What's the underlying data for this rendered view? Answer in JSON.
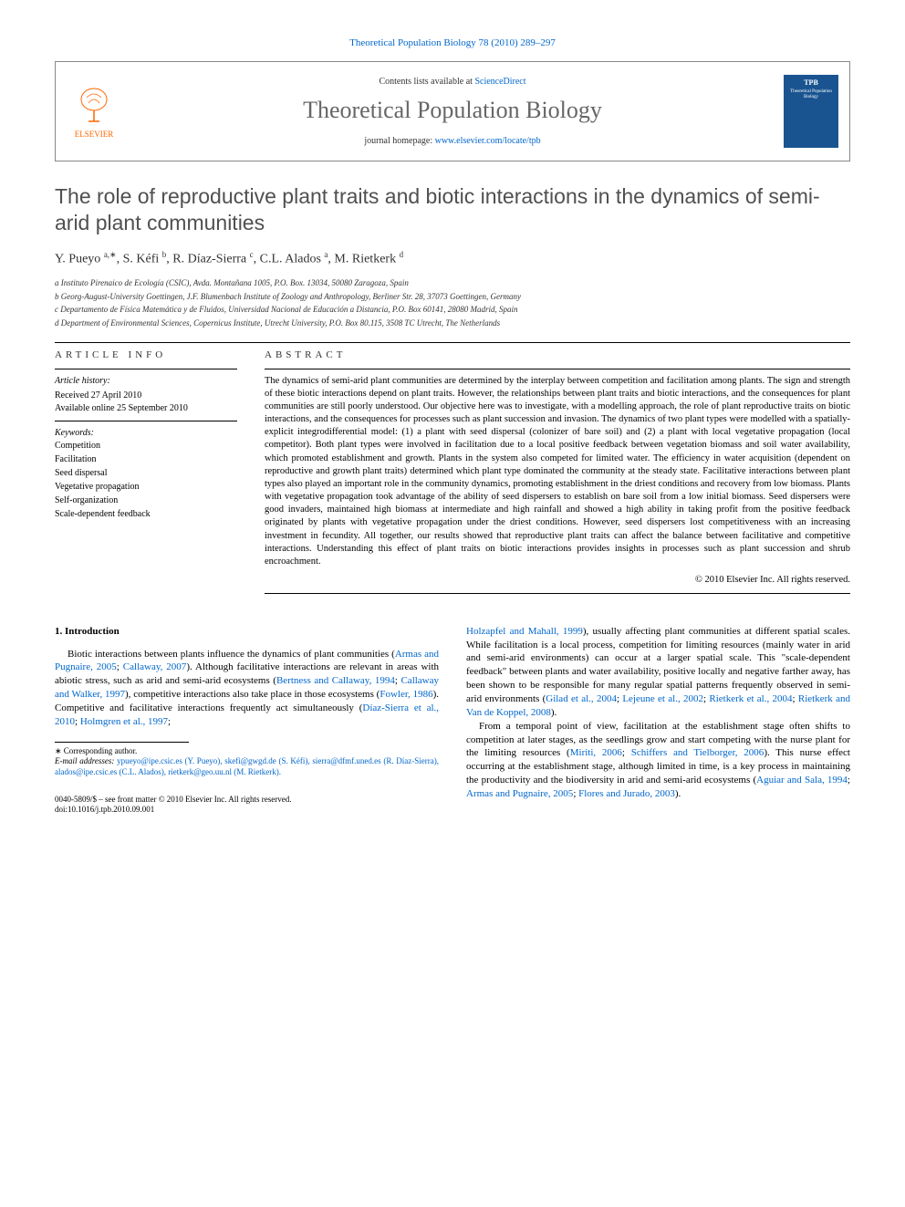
{
  "header": {
    "citation": "Theoretical Population Biology 78 (2010) 289–297",
    "contents_prefix": "Contents lists available at ",
    "contents_link": "ScienceDirect",
    "journal": "Theoretical Population Biology",
    "homepage_prefix": "journal homepage: ",
    "homepage_link": "www.elsevier.com/locate/tpb",
    "publisher": "ELSEVIER",
    "cover_abbrev": "TPB",
    "cover_title": "Theoretical Population Biology"
  },
  "article": {
    "title": "The role of reproductive plant traits and biotic interactions in the dynamics of semi-arid plant communities",
    "authors_html": "Y. Pueyo <sup>a,∗</sup>, S. Kéfi <sup>b</sup>, R. Díaz-Sierra <sup>c</sup>, C.L. Alados <sup>a</sup>, M. Rietkerk <sup>d</sup>",
    "affiliations": [
      "a Instituto Pirenaico de Ecología (CSIC), Avda. Montañana 1005, P.O. Box. 13034, 50080 Zaragoza, Spain",
      "b Georg-August-University Goettingen, J.F. Blumenbach Institute of Zoology and Anthropology, Berliner Str. 28, 37073 Goettingen, Germany",
      "c Departamento de Física Matemática y de Fluidos, Universidad Nacional de Educación a Distancia, P.O. Box 60141, 28080 Madrid, Spain",
      "d Department of Environmental Sciences, Copernicus Institute, Utrecht University, P.O. Box 80.115, 3508 TC Utrecht, The Netherlands"
    ]
  },
  "info": {
    "heading": "ARTICLE INFO",
    "history_heading": "Article history:",
    "received": "Received 27 April 2010",
    "online": "Available online 25 September 2010",
    "keywords_heading": "Keywords:",
    "keywords": [
      "Competition",
      "Facilitation",
      "Seed dispersal",
      "Vegetative propagation",
      "Self-organization",
      "Scale-dependent feedback"
    ]
  },
  "abstract": {
    "heading": "ABSTRACT",
    "text": "The dynamics of semi-arid plant communities are determined by the interplay between competition and facilitation among plants. The sign and strength of these biotic interactions depend on plant traits. However, the relationships between plant traits and biotic interactions, and the consequences for plant communities are still poorly understood. Our objective here was to investigate, with a modelling approach, the role of plant reproductive traits on biotic interactions, and the consequences for processes such as plant succession and invasion. The dynamics of two plant types were modelled with a spatially-explicit integrodifferential model: (1) a plant with seed dispersal (colonizer of bare soil) and (2) a plant with local vegetative propagation (local competitor). Both plant types were involved in facilitation due to a local positive feedback between vegetation biomass and soil water availability, which promoted establishment and growth. Plants in the system also competed for limited water. The efficiency in water acquisition (dependent on reproductive and growth plant traits) determined which plant type dominated the community at the steady state. Facilitative interactions between plant types also played an important role in the community dynamics, promoting establishment in the driest conditions and recovery from low biomass. Plants with vegetative propagation took advantage of the ability of seed dispersers to establish on bare soil from a low initial biomass. Seed dispersers were good invaders, maintained high biomass at intermediate and high rainfall and showed a high ability in taking profit from the positive feedback originated by plants with vegetative propagation under the driest conditions. However, seed dispersers lost competitiveness with an increasing investment in fecundity. All together, our results showed that reproductive plant traits can affect the balance between facilitative and competitive interactions. Understanding this effect of plant traits on biotic interactions provides insights in processes such as plant succession and shrub encroachment.",
    "copyright": "© 2010 Elsevier Inc. All rights reserved."
  },
  "body": {
    "section1_heading": "1. Introduction",
    "col1_p1_pre": "Biotic interactions between plants influence the dynamics of plant communities (",
    "col1_p1_c1": "Armas and Pugnaire, 2005",
    "col1_p1_m1": "; ",
    "col1_p1_c2": "Callaway, 2007",
    "col1_p1_m2": "). Although facilitative interactions are relevant in areas with abiotic stress, such as arid and semi-arid ecosystems (",
    "col1_p1_c3": "Bertness and Callaway, 1994",
    "col1_p1_m3": "; ",
    "col1_p1_c4": "Callaway and Walker, 1997",
    "col1_p1_m4": "), competitive interactions also take place in those ecosystems (",
    "col1_p1_c5": "Fowler, 1986",
    "col1_p1_m5": "). Competitive and facilitative interactions frequently act simultaneously (",
    "col1_p1_c6": "Díaz-Sierra et al., 2010",
    "col1_p1_m6": "; ",
    "col1_p1_c7": "Holmgren et al., 1997",
    "col1_p1_end": ";",
    "col2_p1_c1": "Holzapfel and Mahall, 1999",
    "col2_p1_m1": "), usually affecting plant communities at different spatial scales. While facilitation is a local process, competition for limiting resources (mainly water in arid and semi-arid environments) can occur at a larger spatial scale. This \"scale-dependent feedback\" between plants and water availability, positive locally and negative farther away, has been shown to be responsible for many regular spatial patterns frequently observed in semi-arid environments (",
    "col2_p1_c2": "Gilad et al., 2004",
    "col2_p1_m2": "; ",
    "col2_p1_c3": "Lejeune et al., 2002",
    "col2_p1_m3": "; ",
    "col2_p1_c4": "Rietkerk et al., 2004",
    "col2_p1_m4": "; ",
    "col2_p1_c5": "Rietkerk and Van de Koppel, 2008",
    "col2_p1_end": ").",
    "col2_p2_pre": "From a temporal point of view, facilitation at the establishment stage often shifts to competition at later stages, as the seedlings grow and start competing with the nurse plant for the limiting resources (",
    "col2_p2_c1": "Miriti, 2006",
    "col2_p2_m1": "; ",
    "col2_p2_c2": "Schiffers and Tielborger, 2006",
    "col2_p2_m2": "). This nurse effect occurring at the establishment stage, although limited in time, is a key process in maintaining the productivity and the biodiversity in arid and semi-arid ecosystems (",
    "col2_p2_c3": "Aguiar and Sala, 1994",
    "col2_p2_m3": "; ",
    "col2_p2_c4": "Armas and Pugnaire, 2005",
    "col2_p2_m4": "; ",
    "col2_p2_c5": "Flores and Jurado, 2003",
    "col2_p2_end": ")."
  },
  "footnotes": {
    "corresponding": "∗ Corresponding author.",
    "email_label": "E-mail addresses: ",
    "emails": "ypueyo@ipe.csic.es (Y. Pueyo), skefi@gwgd.de (S. Kéfi), sierra@dfmf.uned.es (R. Díaz-Sierra), alados@ipe.csic.es (C.L. Alados), rietkerk@geo.uu.nl (M. Rietkerk)."
  },
  "bottom": {
    "line1": "0040-5809/$ – see front matter © 2010 Elsevier Inc. All rights reserved.",
    "line2": "doi:10.1016/j.tpb.2010.09.001"
  },
  "colors": {
    "link": "#0066cc",
    "title_gray": "#505050",
    "journal_gray": "#666666",
    "orange": "#ff6600",
    "cover_blue": "#1a5490"
  }
}
